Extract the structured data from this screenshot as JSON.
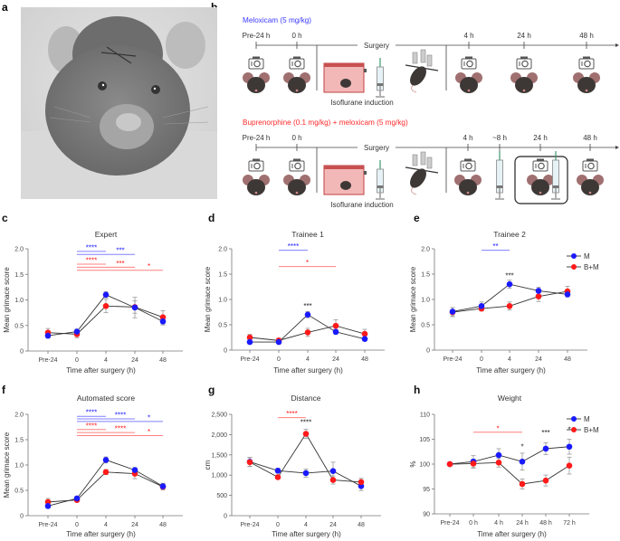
{
  "colors": {
    "M": "#1a1aff",
    "BM": "#ff1a1a",
    "M_sig": "#8080ff",
    "BM_sig": "#ff8080",
    "line": "#333333",
    "err": "#999999"
  },
  "panel_labels": {
    "a": "a",
    "b": "b",
    "c": "c",
    "d": "d",
    "e": "e",
    "f": "f",
    "g": "g",
    "h": "h"
  },
  "schematic": {
    "top": {
      "drug": "Meloxicam (5 mg/kg)",
      "timepoints": [
        "Pre-24 h",
        "0 h",
        "4 h",
        "24 h",
        "48 h"
      ],
      "surgery_label": "Surgery",
      "induction_label": "Isoflurane induction"
    },
    "bottom": {
      "drug": "Buprenorphine (0.1 mg/kg) + meloxicam (5 mg/kg)",
      "timepoints": [
        "Pre-24 h",
        "0 h",
        "4 h",
        "~8 h",
        "24 h",
        "48 h"
      ],
      "surgery_label": "Surgery",
      "induction_label": "Isoflurane induction"
    }
  },
  "chart_data": [
    {
      "id": "c",
      "type": "line",
      "title": "Expert",
      "xlabel": "Time after surgery (h)",
      "ylabel": "Mean grimace score",
      "categories": [
        "Pre-24",
        "0",
        "4",
        "24",
        "48"
      ],
      "yticks": [
        "0",
        "0.5",
        "1.0",
        "1.5",
        "2.0"
      ],
      "ylim": [
        0,
        2.0
      ],
      "series": [
        {
          "name": "M",
          "values": [
            0.3,
            0.38,
            1.1,
            0.85,
            0.58
          ],
          "err": [
            0.05,
            0.05,
            0.06,
            0.2,
            0.07
          ]
        },
        {
          "name": "B+M",
          "values": [
            0.36,
            0.33,
            0.88,
            0.86,
            0.66
          ],
          "err": [
            0.08,
            0.07,
            0.13,
            0.12,
            0.13
          ]
        }
      ],
      "significance": [
        {
          "series": "M",
          "from": "0",
          "to": "4",
          "label": "****",
          "y": 1.95
        },
        {
          "series": "M",
          "from": "0",
          "to": "24",
          "label": "***",
          "y": 1.89
        },
        {
          "series": "B+M",
          "from": "0",
          "to": "4",
          "label": "****",
          "y": 1.7
        },
        {
          "series": "B+M",
          "from": "0",
          "to": "24",
          "label": "***",
          "y": 1.64
        },
        {
          "series": "B+M",
          "from": "0",
          "to": "48",
          "label": "*",
          "y": 1.58
        }
      ],
      "point_annotations": []
    },
    {
      "id": "d",
      "type": "line",
      "title": "Trainee 1",
      "xlabel": "Time after surgery (h)",
      "ylabel": "Mean grimace score",
      "categories": [
        "Pre-24",
        "0",
        "4",
        "24",
        "48"
      ],
      "yticks": [
        "0",
        "0.5",
        "1.0",
        "1.5",
        "2.0"
      ],
      "ylim": [
        0,
        2.0
      ],
      "series": [
        {
          "name": "M",
          "values": [
            0.16,
            0.16,
            0.7,
            0.36,
            0.22
          ],
          "err": [
            0.04,
            0.04,
            0.06,
            0.05,
            0.04
          ]
        },
        {
          "name": "B+M",
          "values": [
            0.25,
            0.19,
            0.35,
            0.48,
            0.32
          ],
          "err": [
            0.06,
            0.04,
            0.08,
            0.12,
            0.09
          ]
        }
      ],
      "significance": [
        {
          "series": "M",
          "from": "0",
          "to": "4",
          "label": "****",
          "y": 1.97
        },
        {
          "series": "B+M",
          "from": "0",
          "to": "24",
          "label": "*",
          "y": 1.65
        }
      ],
      "point_annotations": [
        {
          "x": "4",
          "y": 0.82,
          "label": "***"
        }
      ]
    },
    {
      "id": "e",
      "type": "line",
      "title": "Trainee 2",
      "xlabel": "Time after surgery (h)",
      "ylabel": "Mean grimace score",
      "categories": [
        "Pre-24",
        "0",
        "4",
        "24",
        "48"
      ],
      "yticks": [
        "0",
        "0.5",
        "1.0",
        "1.5",
        "2.0"
      ],
      "ylim": [
        0,
        2.0
      ],
      "series": [
        {
          "name": "M",
          "values": [
            0.76,
            0.87,
            1.3,
            1.17,
            1.1
          ],
          "err": [
            0.08,
            0.08,
            0.08,
            0.07,
            0.05
          ]
        },
        {
          "name": "B+M",
          "values": [
            0.75,
            0.82,
            0.87,
            1.06,
            1.16
          ],
          "err": [
            0.09,
            0.05,
            0.08,
            0.1,
            0.1
          ]
        }
      ],
      "significance": [
        {
          "series": "M",
          "from": "0",
          "to": "4",
          "label": "**",
          "y": 1.97
        }
      ],
      "point_annotations": [
        {
          "x": "4",
          "y": 1.42,
          "label": "***"
        }
      ],
      "legend": [
        {
          "name": "M",
          "label": "M"
        },
        {
          "name": "B+M",
          "label": "B+M"
        }
      ]
    },
    {
      "id": "f",
      "type": "line",
      "title": "Automated score",
      "xlabel": "Time after surgery (h)",
      "ylabel": "Mean grimace score",
      "categories": [
        "Pre-24",
        "0",
        "4",
        "24",
        "48"
      ],
      "yticks": [
        "0",
        "0.5",
        "1.0",
        "1.5",
        "2.0"
      ],
      "ylim": [
        0,
        2.0
      ],
      "series": [
        {
          "name": "M",
          "values": [
            0.19,
            0.34,
            1.1,
            0.9,
            0.58
          ],
          "err": [
            0.04,
            0.04,
            0.06,
            0.05,
            0.06
          ]
        },
        {
          "name": "B+M",
          "values": [
            0.27,
            0.31,
            0.86,
            0.83,
            0.57
          ],
          "err": [
            0.07,
            0.04,
            0.05,
            0.1,
            0.06
          ]
        }
      ],
      "significance": [
        {
          "series": "M",
          "from": "0",
          "to": "4",
          "label": "****",
          "y": 1.96
        },
        {
          "series": "M",
          "from": "0",
          "to": "24",
          "label": "****",
          "y": 1.91
        },
        {
          "series": "M",
          "from": "0",
          "to": "48",
          "label": "*",
          "y": 1.86
        },
        {
          "series": "B+M",
          "from": "0",
          "to": "4",
          "label": "****",
          "y": 1.7
        },
        {
          "series": "B+M",
          "from": "0",
          "to": "24",
          "label": "****",
          "y": 1.64
        },
        {
          "series": "B+M",
          "from": "0",
          "to": "48",
          "label": "*",
          "y": 1.58
        }
      ],
      "point_annotations": []
    },
    {
      "id": "g",
      "type": "line",
      "title": "Distance",
      "xlabel": "Time after surgery (h)",
      "ylabel": "cm",
      "categories": [
        "Pre-24",
        "0",
        "4",
        "24",
        "48"
      ],
      "yticks": [
        "0",
        "500",
        "1,000",
        "1,500",
        "2,000",
        "2,500"
      ],
      "ylim": [
        0,
        2500
      ],
      "series": [
        {
          "name": "M",
          "values": [
            1330,
            1110,
            1050,
            1100,
            730
          ],
          "err": [
            110,
            60,
            100,
            220,
            110
          ]
        },
        {
          "name": "B+M",
          "values": [
            1320,
            950,
            2020,
            880,
            830
          ],
          "err": [
            110,
            50,
            110,
            100,
            90
          ]
        }
      ],
      "significance": [
        {
          "series": "B+M",
          "from": "0",
          "to": "4",
          "label": "****",
          "y": 2420
        }
      ],
      "point_annotations": [
        {
          "x": "4",
          "y": 2240,
          "label": "****"
        }
      ]
    },
    {
      "id": "h",
      "type": "line",
      "title": "Weight",
      "xlabel": "Time after surgery (h)",
      "ylabel": "%",
      "categories": [
        "Pre-24",
        "0 h",
        "4 h",
        "24 h",
        "48 h",
        "72 h"
      ],
      "yticks": [
        "90",
        "95",
        "100",
        "105",
        "110"
      ],
      "ylim": [
        90,
        110
      ],
      "series": [
        {
          "name": "M",
          "values": [
            100.0,
            100.5,
            101.8,
            100.5,
            103.1,
            103.5
          ],
          "err": [
            0,
            1.2,
            1.3,
            1.7,
            1.2,
            1.5
          ]
        },
        {
          "name": "B+M",
          "values": [
            100.0,
            100.1,
            100.3,
            96.0,
            96.7,
            99.7
          ],
          "err": [
            0,
            0.9,
            0.9,
            1.0,
            1.1,
            1.7
          ]
        }
      ],
      "significance": [
        {
          "series": "B+M",
          "from": "0 h",
          "to": "24 h",
          "label": "*",
          "y": 106.4
        }
      ],
      "point_annotations": [
        {
          "x": "24 h",
          "y": 103.0,
          "label": "*"
        },
        {
          "x": "48 h",
          "y": 105.8,
          "label": "***"
        },
        {
          "x": "72 h",
          "y": 106.5,
          "label": "*"
        }
      ],
      "legend": [
        {
          "name": "M",
          "label": "M"
        },
        {
          "name": "B+M",
          "label": "B+M"
        }
      ]
    }
  ]
}
